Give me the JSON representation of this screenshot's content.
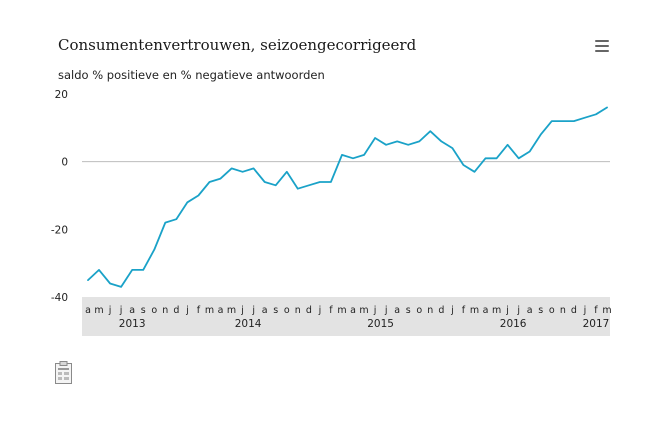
{
  "header": {
    "title": "Consumentenvertrouwen, seizoengecorrigeerd",
    "menu_icon": "hamburger-menu-icon"
  },
  "footer": {
    "icon": "document-spreadsheet-icon"
  },
  "chart_data": {
    "type": "line",
    "title": "Consumentenvertrouwen, seizoengecorrigeerd",
    "ylabel": "saldo % positieve en % negatieve antwoorden",
    "xlabel": "",
    "ylim": [
      -40,
      20
    ],
    "y_ticks": [
      -40,
      -20,
      0,
      20
    ],
    "grid": false,
    "zero_line": true,
    "line_color": "#1aa2c8",
    "axis_band_color": "#e3e3e3",
    "months": [
      "a",
      "m",
      "j",
      "j",
      "a",
      "s",
      "o",
      "n",
      "d",
      "j",
      "f",
      "m",
      "a",
      "m",
      "j",
      "j",
      "a",
      "s",
      "o",
      "n",
      "d",
      "j",
      "f",
      "m",
      "a",
      "m",
      "j",
      "j",
      "a",
      "s",
      "o",
      "n",
      "d",
      "j",
      "f",
      "m",
      "a",
      "m",
      "j",
      "j",
      "a",
      "s",
      "o",
      "n",
      "d",
      "j",
      "f",
      "m"
    ],
    "years": [
      {
        "label": "2013",
        "start_index": 0,
        "end_index": 8
      },
      {
        "label": "2014",
        "start_index": 9,
        "end_index": 20
      },
      {
        "label": "2015",
        "start_index": 21,
        "end_index": 32
      },
      {
        "label": "2016",
        "start_index": 33,
        "end_index": 44
      },
      {
        "label": "2017",
        "start_index": 45,
        "end_index": 47
      }
    ],
    "values": [
      -35,
      -32,
      -36,
      -37,
      -32,
      -32,
      -26,
      -18,
      -17,
      -12,
      -10,
      -6,
      -5,
      -2,
      -3,
      -2,
      -6,
      -7,
      -3,
      -8,
      -7,
      -6,
      -6,
      2,
      1,
      2,
      7,
      5,
      6,
      5,
      6,
      9,
      6,
      4,
      -1,
      -3,
      1,
      1,
      5,
      1,
      3,
      8,
      12,
      12,
      12,
      13,
      14,
      16
    ]
  }
}
